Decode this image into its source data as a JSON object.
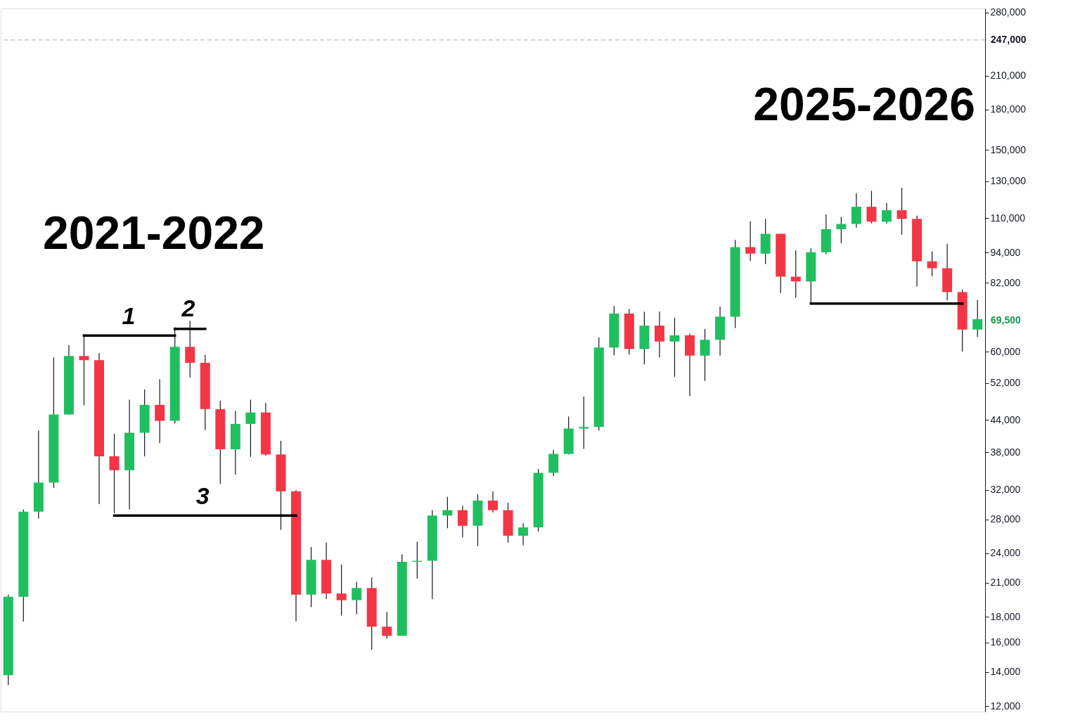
{
  "chart_data": {
    "type": "candlestick",
    "categories": [
      null,
      null,
      null,
      null,
      null,
      null,
      null,
      null,
      null,
      null,
      null,
      null,
      null,
      null,
      null,
      null,
      null,
      null,
      null,
      null,
      null,
      null,
      null,
      null,
      null,
      null,
      null,
      null,
      null,
      null,
      null,
      null,
      null,
      null,
      null,
      null,
      null,
      null,
      null,
      null,
      null,
      null,
      null,
      null,
      null,
      null,
      null,
      null,
      null,
      null,
      null,
      null,
      null,
      null,
      null,
      null,
      null,
      null,
      null,
      null,
      null,
      null,
      null,
      null,
      null
    ],
    "ohlc": [
      [
        13800,
        19900,
        13200,
        19700
      ],
      [
        19700,
        29300,
        17600,
        29000
      ],
      [
        29000,
        41900,
        28100,
        33100
      ],
      [
        33100,
        58400,
        32300,
        45100
      ],
      [
        45100,
        61800,
        45000,
        58800
      ],
      [
        58800,
        64900,
        47000,
        57700
      ],
      [
        57700,
        59600,
        30000,
        37300
      ],
      [
        37300,
        41300,
        28800,
        35000
      ],
      [
        35000,
        48200,
        29300,
        41500
      ],
      [
        41500,
        50500,
        37300,
        47100
      ],
      [
        47100,
        52900,
        39600,
        43800
      ],
      [
        43800,
        67000,
        43300,
        61300
      ],
      [
        61300,
        69000,
        53300,
        57000
      ],
      [
        57000,
        59100,
        42000,
        46200
      ],
      [
        46200,
        48000,
        32900,
        38500
      ],
      [
        38500,
        45800,
        34300,
        43200
      ],
      [
        43200,
        48200,
        37200,
        45500
      ],
      [
        45500,
        47500,
        37400,
        37600
      ],
      [
        37600,
        40000,
        26700,
        31800
      ],
      [
        31800,
        32000,
        17600,
        19900
      ],
      [
        19900,
        24700,
        18800,
        23300
      ],
      [
        23300,
        25200,
        19500,
        20000
      ],
      [
        20000,
        22800,
        18100,
        19400
      ],
      [
        19400,
        21100,
        18200,
        20500
      ],
      [
        20500,
        21500,
        15500,
        17200
      ],
      [
        17200,
        18400,
        16300,
        16500
      ],
      [
        16500,
        23900,
        16500,
        23100
      ],
      [
        23100,
        25300,
        21400,
        23200
      ],
      [
        23200,
        29200,
        19500,
        28500
      ],
      [
        28500,
        31000,
        26900,
        29200
      ],
      [
        29200,
        29800,
        25800,
        27200
      ],
      [
        27200,
        31400,
        24800,
        30500
      ],
      [
        30500,
        31800,
        28900,
        29200
      ],
      [
        29200,
        30200,
        25200,
        26000
      ],
      [
        26000,
        27500,
        24900,
        27000
      ],
      [
        27000,
        35200,
        26500,
        34600
      ],
      [
        34600,
        38400,
        34100,
        37700
      ],
      [
        37700,
        44700,
        37600,
        42300
      ],
      [
        42300,
        48900,
        38600,
        42600
      ],
      [
        42600,
        64000,
        41900,
        61100
      ],
      [
        61100,
        73800,
        59000,
        71300
      ],
      [
        71300,
        72800,
        59200,
        60700
      ],
      [
        60700,
        71900,
        56600,
        67500
      ],
      [
        67500,
        72000,
        58400,
        62800
      ],
      [
        62800,
        70000,
        53500,
        64600
      ],
      [
        64600,
        65100,
        49000,
        58900
      ],
      [
        58900,
        66500,
        52500,
        63300
      ],
      [
        63300,
        73600,
        58900,
        70300
      ],
      [
        70300,
        99600,
        66800,
        96400
      ],
      [
        96400,
        108400,
        90500,
        93600
      ],
      [
        93600,
        109600,
        89300,
        102400
      ],
      [
        102400,
        102500,
        78300,
        84300
      ],
      [
        84300,
        95000,
        76600,
        82500
      ],
      [
        82500,
        95800,
        74600,
        94200
      ],
      [
        94200,
        111900,
        93400,
        104600
      ],
      [
        104600,
        110600,
        98200,
        107100
      ],
      [
        107100,
        123200,
        105300,
        115800
      ],
      [
        115800,
        124500,
        107400,
        108200
      ],
      [
        108200,
        117900,
        107300,
        114000
      ],
      [
        114000,
        126200,
        102000,
        109600
      ],
      [
        109600,
        111200,
        80600,
        90400
      ],
      [
        90400,
        94600,
        84500,
        87600
      ],
      [
        87600,
        97900,
        75700,
        78600
      ],
      [
        78600,
        79500,
        60000,
        66300
      ],
      [
        66300,
        75900,
        64100,
        69500
      ]
    ],
    "colors": [
      "#1fbf5f",
      "#1fbf5f",
      "#1fbf5f",
      "#1fbf5f",
      "#1fbf5f",
      "#f23645",
      "#f23645",
      "#f23645",
      "#1fbf5f",
      "#1fbf5f",
      "#f23645",
      "#1fbf5f",
      "#f23645",
      "#f23645",
      "#f23645",
      "#1fbf5f",
      "#1fbf5f",
      "#f23645",
      "#f23645",
      "#f23645",
      "#1fbf5f",
      "#f23645",
      "#f23645",
      "#1fbf5f",
      "#f23645",
      "#f23645",
      "#1fbf5f",
      "#1fbf5f",
      "#1fbf5f",
      "#1fbf5f",
      "#f23645",
      "#1fbf5f",
      "#f23645",
      "#f23645",
      "#1fbf5f",
      "#1fbf5f",
      "#1fbf5f",
      "#1fbf5f",
      "#1fbf5f",
      "#1fbf5f",
      "#1fbf5f",
      "#f23645",
      "#1fbf5f",
      "#f23645",
      "#1fbf5f",
      "#f23645",
      "#1fbf5f",
      "#1fbf5f",
      "#1fbf5f",
      "#f23645",
      "#1fbf5f",
      "#f23645",
      "#f23645",
      "#1fbf5f",
      "#1fbf5f",
      "#1fbf5f",
      "#1fbf5f",
      "#f23645",
      "#1fbf5f",
      "#f23645",
      "#f23645",
      "#f23645",
      "#f23645",
      "#f23645",
      "#1fbf5f"
    ],
    "series": [
      {
        "type": "line",
        "color": "#000000",
        "values": [
          null,
          null,
          null,
          null,
          null,
          64500,
          64500,
          64500,
          64500,
          64500,
          64500,
          64500,
          null,
          null,
          null,
          null,
          null,
          null,
          null,
          null,
          null,
          null,
          null,
          null,
          null,
          null,
          null,
          null,
          null,
          null,
          null,
          null,
          null,
          null,
          null,
          null,
          null,
          null,
          null,
          null,
          null,
          null,
          null,
          null,
          null,
          null,
          null,
          null,
          null,
          null,
          null,
          null,
          null,
          null,
          null,
          null,
          null,
          null,
          null,
          null,
          null,
          null,
          null,
          null,
          null
        ]
      },
      {
        "type": "line",
        "color": "#000000",
        "values": [
          null,
          null,
          null,
          null,
          null,
          null,
          null,
          null,
          null,
          null,
          null,
          66500,
          66500,
          66500,
          null,
          null,
          null,
          null,
          null,
          null,
          null,
          null,
          null,
          null,
          null,
          null,
          null,
          null,
          null,
          null,
          null,
          null,
          null,
          null,
          null,
          null,
          null,
          null,
          null,
          null,
          null,
          null,
          null,
          null,
          null,
          null,
          null,
          null,
          null,
          null,
          null,
          null,
          null,
          null,
          null,
          null,
          null,
          null,
          null,
          null,
          null,
          null,
          null,
          null,
          null
        ]
      },
      {
        "type": "line",
        "color": "#000000",
        "values": [
          null,
          null,
          null,
          null,
          null,
          null,
          null,
          28500,
          28500,
          28500,
          28500,
          28500,
          28500,
          28500,
          28500,
          28500,
          28500,
          28500,
          28500,
          28500,
          null,
          null,
          null,
          null,
          null,
          null,
          null,
          null,
          null,
          null,
          null,
          null,
          null,
          null,
          null,
          null,
          null,
          null,
          null,
          null,
          null,
          null,
          null,
          null,
          null,
          null,
          null,
          null,
          null,
          null,
          null,
          null,
          null,
          null,
          null,
          null,
          null,
          null,
          null,
          null,
          null,
          null,
          null,
          null,
          null
        ]
      },
      {
        "type": "line",
        "color": "#000000",
        "values": [
          null,
          null,
          null,
          null,
          null,
          null,
          null,
          null,
          null,
          null,
          null,
          null,
          null,
          null,
          null,
          null,
          null,
          null,
          null,
          null,
          null,
          null,
          null,
          null,
          null,
          null,
          null,
          null,
          null,
          null,
          null,
          null,
          null,
          null,
          null,
          null,
          null,
          null,
          null,
          null,
          null,
          null,
          null,
          null,
          null,
          null,
          null,
          null,
          null,
          null,
          null,
          null,
          null,
          74600,
          74600,
          74600,
          74600,
          74600,
          74600,
          74600,
          74600,
          74600,
          74600,
          74600,
          null
        ]
      }
    ],
    "log": "y",
    "ylim": [
      11700,
      285000
    ],
    "yticks": [
      {
        "value": 12000,
        "label": "12,000"
      },
      {
        "value": 14000,
        "label": "14,000"
      },
      {
        "value": 16000,
        "label": "16,000"
      },
      {
        "value": 18000,
        "label": "18,000"
      },
      {
        "value": 21000,
        "label": "21,000"
      },
      {
        "value": 24000,
        "label": "24,000"
      },
      {
        "value": 28000,
        "label": "28,000"
      },
      {
        "value": 32000,
        "label": "32,000"
      },
      {
        "value": 38000,
        "label": "38,000"
      },
      {
        "value": 44000,
        "label": "44,000"
      },
      {
        "value": 52000,
        "label": "52,000"
      },
      {
        "value": 60000,
        "label": "60,000"
      },
      {
        "value": 82000,
        "label": "82,000"
      },
      {
        "value": 94000,
        "label": "94,000"
      },
      {
        "value": 110000,
        "label": "110,000"
      },
      {
        "value": 130000,
        "label": "130,000"
      },
      {
        "value": 150000,
        "label": "150,000"
      },
      {
        "value": 180000,
        "label": "180,000"
      },
      {
        "value": 210000,
        "label": "210,000"
      },
      {
        "value": 280000,
        "label": "280,000"
      }
    ],
    "tick_labels": "y",
    "ref_lines": [
      {
        "axis": "y",
        "value": 247000,
        "label": "247,000",
        "color": "#b0b0b0",
        "line_style": "dashed"
      }
    ],
    "annotations": [
      "2021-2022",
      "2025-2026",
      "1",
      "2",
      "3",
      "69,500"
    ]
  }
}
